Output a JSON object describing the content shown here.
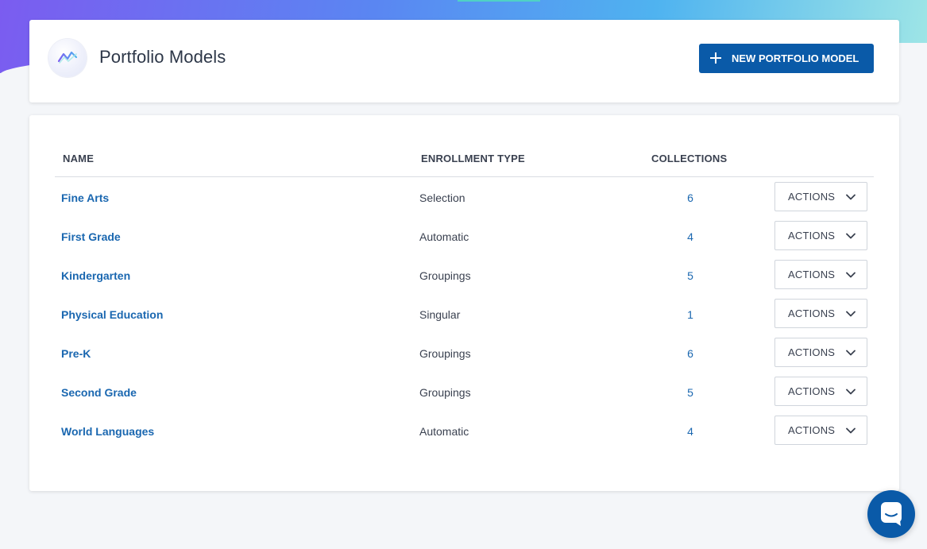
{
  "header": {
    "title": "Portfolio Models",
    "logo_icon": "trend-line-icon",
    "new_button_label": "NEW PORTFOLIO MODEL",
    "new_button_icon": "plus-icon"
  },
  "table": {
    "columns": {
      "name": "NAME",
      "enrollment_type": "ENROLLMENT TYPE",
      "collections": "COLLECTIONS"
    },
    "rows": [
      {
        "name": "Fine Arts",
        "enrollment_type": "Selection",
        "collections": "6",
        "action_label": "ACTIONS"
      },
      {
        "name": "First Grade",
        "enrollment_type": "Automatic",
        "collections": "4",
        "action_label": "ACTIONS"
      },
      {
        "name": "Kindergarten",
        "enrollment_type": "Groupings",
        "collections": "5",
        "action_label": "ACTIONS"
      },
      {
        "name": "Physical Education",
        "enrollment_type": "Singular",
        "collections": "1",
        "action_label": "ACTIONS"
      },
      {
        "name": "Pre-K",
        "enrollment_type": "Groupings",
        "collections": "6",
        "action_label": "ACTIONS"
      },
      {
        "name": "Second Grade",
        "enrollment_type": "Groupings",
        "collections": "5",
        "action_label": "ACTIONS"
      },
      {
        "name": "World Languages",
        "enrollment_type": "Automatic",
        "collections": "4",
        "action_label": "ACTIONS"
      }
    ]
  },
  "chat": {
    "icon": "chat-icon"
  },
  "colors": {
    "primary": "#0a5aa8",
    "link": "#1a67b0",
    "text": "#3a4150"
  }
}
